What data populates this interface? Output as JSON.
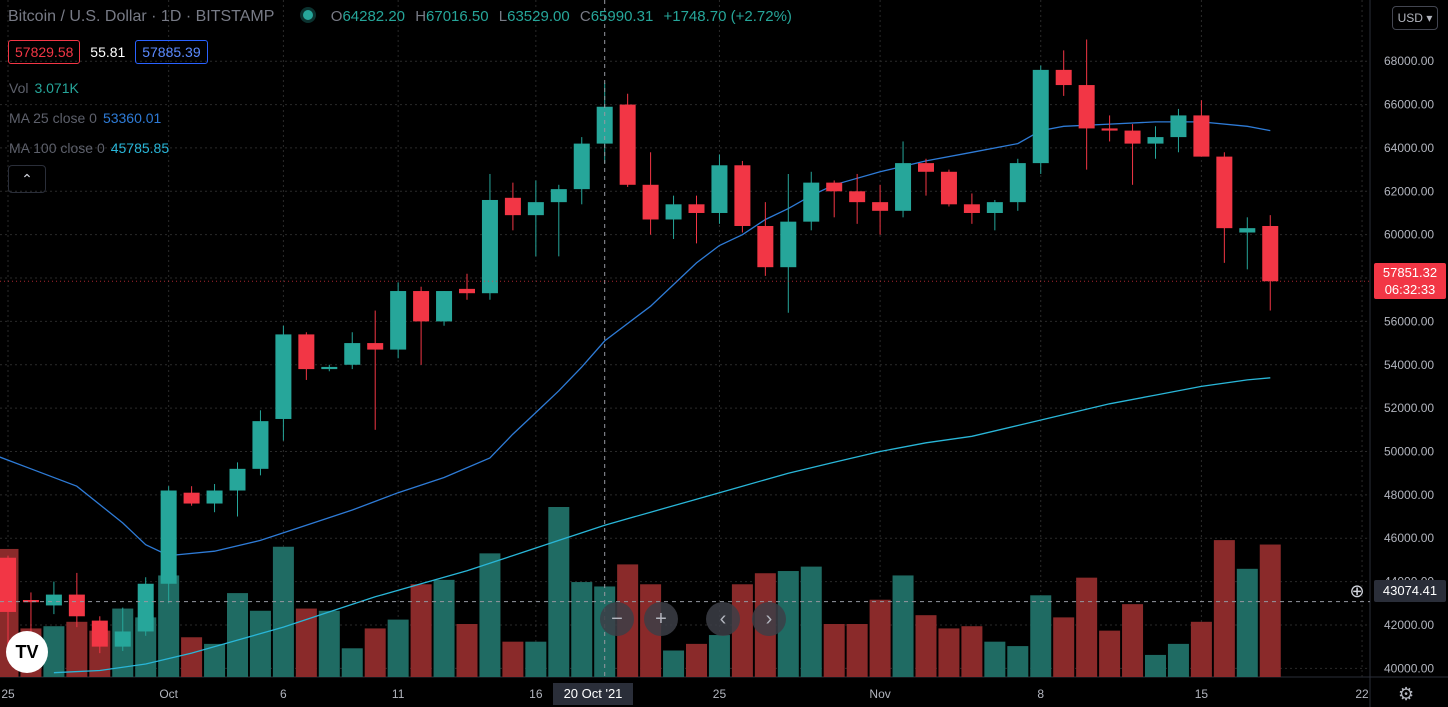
{
  "header": {
    "symbol": "Bitcoin / U.S. Dollar · 1D · BITSTAMP",
    "open_prefix": "O",
    "open": "64282.20",
    "high_prefix": "H",
    "high": "67016.50",
    "low_prefix": "L",
    "low": "63529.00",
    "close_prefix": "C",
    "close": "65990.31",
    "change": "+1748.70 (+2.72%)",
    "bid": "57829.58",
    "spread": "55.81",
    "ask": "57885.39",
    "vol_label": "Vol",
    "vol_value": "3.071K",
    "ma25_label": "MA 25 close 0",
    "ma25_value": "53360.01",
    "ma100_label": "MA 100 close 0",
    "ma100_value": "45785.85",
    "collapse_icon": "chevron-up-icon",
    "currency": "USD"
  },
  "tags": {
    "last_price": "57851.32",
    "countdown": "06:32:33",
    "crosshair_price": "43074.41",
    "crosshair_date": "20 Oct '21"
  },
  "controls": {
    "zoom_out": "−",
    "zoom_in": "+",
    "scroll_left": "‹",
    "scroll_right": "›",
    "logo_text": "TV",
    "settings_icon": "gear-icon"
  },
  "colors": {
    "up": "#26a69a",
    "down": "#f23645",
    "ma25": "#2e7bd6",
    "ma100": "#29b6d8"
  },
  "chart_data": {
    "type": "candlestick",
    "y_ticks": [
      40000,
      42000,
      44000,
      46000,
      48000,
      50000,
      52000,
      54000,
      56000,
      58000,
      60000,
      62000,
      64000,
      66000,
      68000
    ],
    "ylim": [
      39000,
      70500
    ],
    "x_ticks": [
      {
        "label": "25",
        "idx": 0
      },
      {
        "label": "Oct",
        "idx": 7
      },
      {
        "label": "6",
        "idx": 12
      },
      {
        "label": "11",
        "idx": 17
      },
      {
        "label": "16",
        "idx": 23
      },
      {
        "label": "25",
        "idx": 31
      },
      {
        "label": "Nov",
        "idx": 38
      },
      {
        "label": "8",
        "idx": 45
      },
      {
        "label": "15",
        "idx": 52
      },
      {
        "label": "22",
        "idx": 59
      }
    ],
    "crosshair": {
      "idx": 26,
      "price": 43074.41
    },
    "last_price": 57851.32,
    "candles": [
      {
        "o": 45100,
        "h": 45200,
        "l": 41000,
        "c": 42600,
        "v": 45000
      },
      {
        "o": 43150,
        "h": 43500,
        "l": 41700,
        "c": 43050,
        "v": 41400
      },
      {
        "o": 42900,
        "h": 44000,
        "l": 42500,
        "c": 43400,
        "v": 41500
      },
      {
        "o": 43400,
        "h": 44400,
        "l": 41900,
        "c": 42400,
        "v": 41700
      },
      {
        "o": 42200,
        "h": 42400,
        "l": 40700,
        "c": 41000,
        "v": 41300
      },
      {
        "o": 41000,
        "h": 42800,
        "l": 40800,
        "c": 41700,
        "v": 42300
      },
      {
        "o": 41700,
        "h": 44200,
        "l": 41500,
        "c": 43900,
        "v": 41900
      },
      {
        "o": 43900,
        "h": 48400,
        "l": 43000,
        "c": 48200,
        "v": 43800
      },
      {
        "o": 48100,
        "h": 48400,
        "l": 47500,
        "c": 47600,
        "v": 41000
      },
      {
        "o": 47600,
        "h": 48500,
        "l": 47200,
        "c": 48200,
        "v": 40700
      },
      {
        "o": 48200,
        "h": 49500,
        "l": 47000,
        "c": 49200,
        "v": 43000
      },
      {
        "o": 49200,
        "h": 51900,
        "l": 48900,
        "c": 51400,
        "v": 42200
      },
      {
        "o": 51500,
        "h": 55800,
        "l": 50500,
        "c": 55400,
        "v": 45100
      },
      {
        "o": 55400,
        "h": 55500,
        "l": 53300,
        "c": 53800,
        "v": 42300
      },
      {
        "o": 53800,
        "h": 54000,
        "l": 53700,
        "c": 53900,
        "v": 42200
      },
      {
        "o": 54000,
        "h": 55500,
        "l": 53800,
        "c": 55000,
        "v": 40500
      },
      {
        "o": 55000,
        "h": 56500,
        "l": 51000,
        "c": 54700,
        "v": 41400
      },
      {
        "o": 54700,
        "h": 57800,
        "l": 54300,
        "c": 57400,
        "v": 41800
      },
      {
        "o": 57400,
        "h": 57600,
        "l": 54000,
        "c": 56000,
        "v": 43400
      },
      {
        "o": 56000,
        "h": 57400,
        "l": 55800,
        "c": 57400,
        "v": 43600
      },
      {
        "o": 57500,
        "h": 58200,
        "l": 57000,
        "c": 57300,
        "v": 41600
      },
      {
        "o": 57300,
        "h": 62800,
        "l": 57000,
        "c": 61600,
        "v": 44800
      },
      {
        "o": 61700,
        "h": 62400,
        "l": 60200,
        "c": 60900,
        "v": 40800
      },
      {
        "o": 60900,
        "h": 62500,
        "l": 59000,
        "c": 61500,
        "v": 40800
      },
      {
        "o": 61500,
        "h": 62300,
        "l": 59000,
        "c": 62100,
        "v": 46900
      },
      {
        "o": 62100,
        "h": 64500,
        "l": 61400,
        "c": 64200,
        "v": 43500
      },
      {
        "o": 64200,
        "h": 67000,
        "l": 63300,
        "c": 65900,
        "v": 43300
      },
      {
        "o": 66000,
        "h": 66500,
        "l": 62200,
        "c": 62300,
        "v": 44300
      },
      {
        "o": 62300,
        "h": 63800,
        "l": 60000,
        "c": 60700,
        "v": 43400
      },
      {
        "o": 60700,
        "h": 61800,
        "l": 59800,
        "c": 61400,
        "v": 40400
      },
      {
        "o": 61400,
        "h": 61800,
        "l": 59600,
        "c": 61000,
        "v": 40700
      },
      {
        "o": 61000,
        "h": 63700,
        "l": 60500,
        "c": 63200,
        "v": 41100
      },
      {
        "o": 63200,
        "h": 63400,
        "l": 60100,
        "c": 60400,
        "v": 43400
      },
      {
        "o": 60400,
        "h": 61500,
        "l": 58100,
        "c": 58500,
        "v": 43900
      },
      {
        "o": 58500,
        "h": 62800,
        "l": 56400,
        "c": 60600,
        "v": 44000
      },
      {
        "o": 60600,
        "h": 62900,
        "l": 60200,
        "c": 62400,
        "v": 44200
      },
      {
        "o": 62400,
        "h": 62500,
        "l": 60800,
        "c": 62000,
        "v": 41600
      },
      {
        "o": 62000,
        "h": 62800,
        "l": 60500,
        "c": 61500,
        "v": 41600
      },
      {
        "o": 61500,
        "h": 62300,
        "l": 60000,
        "c": 61100,
        "v": 42700
      },
      {
        "o": 61100,
        "h": 64300,
        "l": 60800,
        "c": 63300,
        "v": 43800
      },
      {
        "o": 63300,
        "h": 63500,
        "l": 61800,
        "c": 62900,
        "v": 42000
      },
      {
        "o": 62900,
        "h": 63000,
        "l": 61300,
        "c": 61400,
        "v": 41400
      },
      {
        "o": 61400,
        "h": 61900,
        "l": 60500,
        "c": 61000,
        "v": 41500
      },
      {
        "o": 61000,
        "h": 61600,
        "l": 60200,
        "c": 61500,
        "v": 40800
      },
      {
        "o": 61500,
        "h": 63500,
        "l": 61100,
        "c": 63300,
        "v": 40600
      },
      {
        "o": 63300,
        "h": 67800,
        "l": 62800,
        "c": 67600,
        "v": 42900
      },
      {
        "o": 67600,
        "h": 68500,
        "l": 66400,
        "c": 66900,
        "v": 41900
      },
      {
        "o": 66900,
        "h": 69000,
        "l": 63000,
        "c": 64900,
        "v": 43700
      },
      {
        "o": 64900,
        "h": 65500,
        "l": 64300,
        "c": 64800,
        "v": 41300
      },
      {
        "o": 64800,
        "h": 65100,
        "l": 62300,
        "c": 64200,
        "v": 42500
      },
      {
        "o": 64200,
        "h": 65000,
        "l": 63500,
        "c": 64500,
        "v": 40200
      },
      {
        "o": 64500,
        "h": 65800,
        "l": 63800,
        "c": 65500,
        "v": 40700
      },
      {
        "o": 65500,
        "h": 66200,
        "l": 63600,
        "c": 63600,
        "v": 41700
      },
      {
        "o": 63600,
        "h": 63800,
        "l": 58700,
        "c": 60300,
        "v": 45400
      },
      {
        "o": 60100,
        "h": 60800,
        "l": 58400,
        "c": 60300,
        "v": 44100
      },
      {
        "o": 60400,
        "h": 60900,
        "l": 56500,
        "c": 57851.32,
        "v": 45200
      }
    ],
    "volume_scale": {
      "min": 39200,
      "max": 46900
    },
    "series": [
      {
        "name": "MA 25 close 0",
        "values": [
          [
            -1,
            50000
          ],
          [
            1,
            49200
          ],
          [
            3,
            48400
          ],
          [
            5,
            46700
          ],
          [
            6,
            45700
          ],
          [
            7,
            45200
          ],
          [
            9,
            45400
          ],
          [
            11,
            45900
          ],
          [
            13,
            46600
          ],
          [
            15,
            47300
          ],
          [
            16,
            47700
          ],
          [
            17,
            48100
          ],
          [
            19,
            48800
          ],
          [
            21,
            49700
          ],
          [
            22,
            50800
          ],
          [
            23,
            51800
          ],
          [
            24,
            52800
          ],
          [
            25,
            53900
          ],
          [
            26,
            55100
          ],
          [
            28,
            56700
          ],
          [
            30,
            58700
          ],
          [
            31,
            59500
          ],
          [
            32,
            60000
          ],
          [
            33,
            60700
          ],
          [
            34,
            61200
          ],
          [
            35,
            61800
          ],
          [
            36,
            62300
          ],
          [
            38,
            62900
          ],
          [
            40,
            63400
          ],
          [
            42,
            63800
          ],
          [
            44,
            64200
          ],
          [
            45,
            64800
          ],
          [
            46,
            65000
          ],
          [
            48,
            65100
          ],
          [
            50,
            65200
          ],
          [
            52,
            65200
          ],
          [
            54,
            65000
          ],
          [
            55,
            64800
          ]
        ]
      },
      {
        "name": "MA 100 close 0",
        "values": [
          [
            2,
            39800
          ],
          [
            4,
            39900
          ],
          [
            6,
            40200
          ],
          [
            8,
            40700
          ],
          [
            10,
            41300
          ],
          [
            12,
            41900
          ],
          [
            14,
            42600
          ],
          [
            16,
            43300
          ],
          [
            18,
            43900
          ],
          [
            20,
            44500
          ],
          [
            22,
            45200
          ],
          [
            24,
            45900
          ],
          [
            26,
            46600
          ],
          [
            28,
            47200
          ],
          [
            30,
            47800
          ],
          [
            32,
            48400
          ],
          [
            34,
            49000
          ],
          [
            36,
            49500
          ],
          [
            38,
            50000
          ],
          [
            40,
            50400
          ],
          [
            42,
            50700
          ],
          [
            44,
            51200
          ],
          [
            46,
            51700
          ],
          [
            48,
            52200
          ],
          [
            50,
            52600
          ],
          [
            52,
            53000
          ],
          [
            54,
            53300
          ],
          [
            55,
            53400
          ]
        ]
      }
    ]
  }
}
